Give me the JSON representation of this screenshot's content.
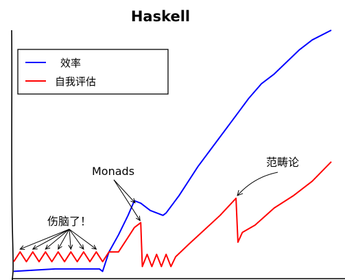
{
  "chart_data": {
    "type": "line",
    "title": "Haskell",
    "xlabel": "",
    "ylabel": "",
    "xlim": [
      0,
      100
    ],
    "ylim": [
      0,
      100
    ],
    "grid": false,
    "legend_position": "top-left",
    "series": [
      {
        "name": "效率",
        "color": "#0000ff",
        "x": [
          0,
          13,
          27,
          28,
          30,
          33,
          36,
          38,
          40,
          43,
          47,
          48,
          52,
          55,
          58,
          62,
          66,
          70,
          74,
          78,
          82,
          86,
          90,
          94,
          100
        ],
        "y": [
          1,
          2,
          2,
          1,
          9,
          16,
          24,
          30,
          29,
          26,
          24,
          25,
          32,
          38,
          44,
          51,
          58,
          65,
          72,
          78,
          82,
          87,
          92,
          96,
          100
        ]
      },
      {
        "name": "自我评估",
        "color": "#ff0000",
        "x": [
          0,
          2,
          4,
          6,
          8,
          10,
          12,
          14,
          16,
          18,
          20,
          22,
          24,
          26,
          28,
          30,
          33,
          36,
          38,
          40,
          40.5,
          42,
          43.5,
          45,
          46.5,
          48,
          49.5,
          51,
          55,
          60,
          65,
          70,
          70.6,
          72,
          76,
          82,
          88,
          94,
          100
        ],
        "y": [
          5,
          9,
          5,
          9,
          5,
          9,
          5,
          9,
          5,
          9,
          5,
          9,
          5,
          9,
          5,
          9,
          9,
          15,
          19,
          21,
          3,
          8,
          3,
          8,
          3,
          8,
          3,
          7,
          12,
          18,
          24,
          31,
          13,
          17,
          20,
          27,
          32,
          38,
          46
        ]
      }
    ],
    "annotations": [
      {
        "text": "伤脑了！",
        "target_series": "自我评估",
        "points_x": [
          2,
          6,
          10,
          14,
          18,
          22,
          26
        ]
      },
      {
        "text": "Monads",
        "target_series": "效率",
        "points_x": [
          38
        ],
        "also_series": "自我评估"
      },
      {
        "text": "范畴论",
        "target_series": "自我评估",
        "points_x": [
          70
        ]
      }
    ]
  },
  "legend": {
    "items": [
      {
        "label": "效率",
        "color": "#0000ff"
      },
      {
        "label": "自我评估",
        "color": "#ff0000"
      }
    ]
  }
}
